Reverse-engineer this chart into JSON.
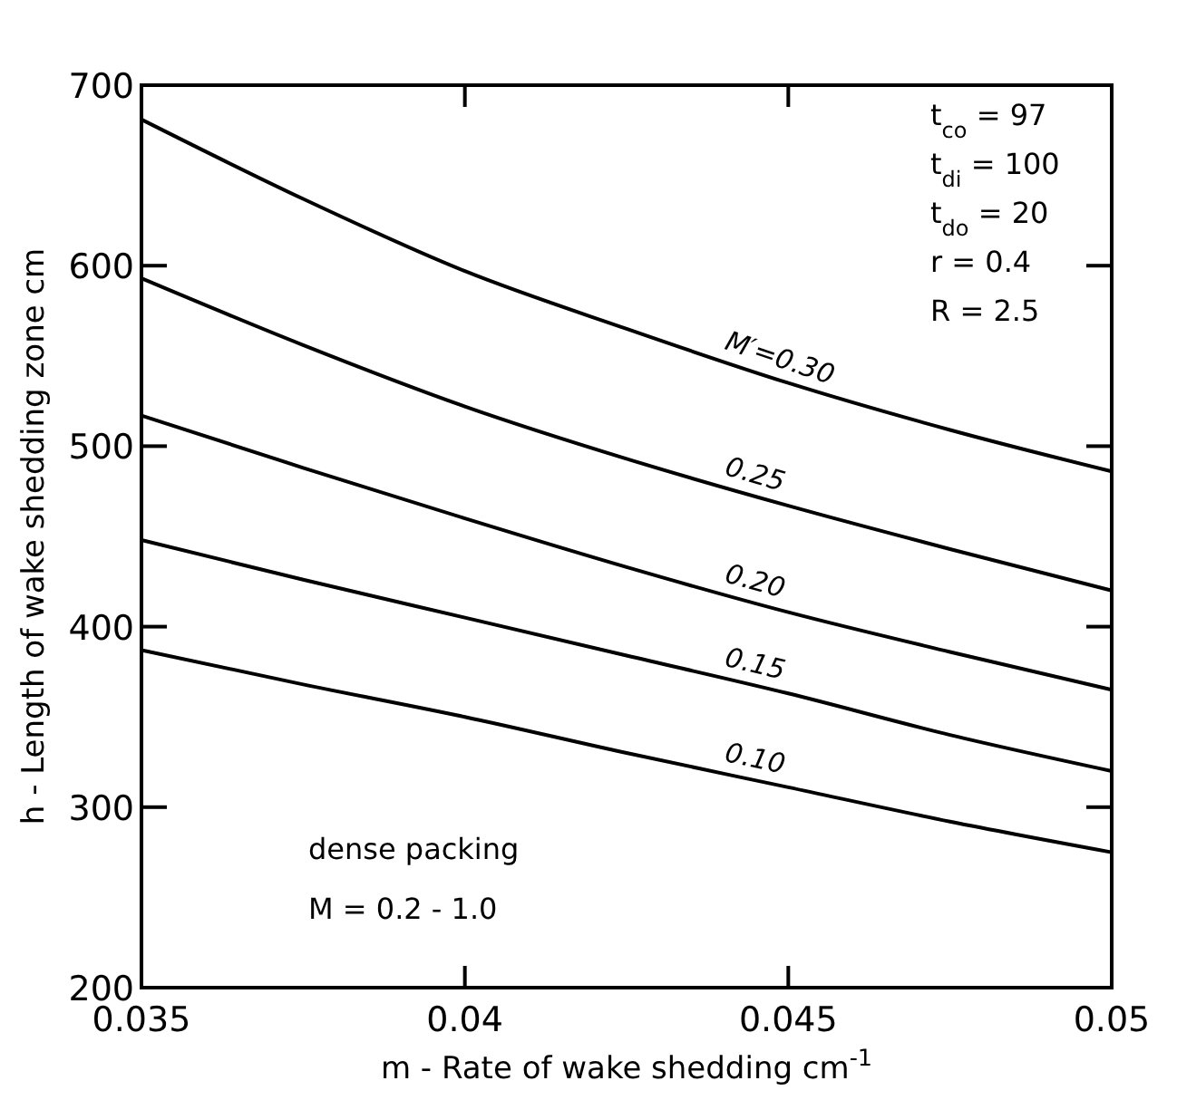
{
  "chart_data": {
    "type": "line",
    "xlabel": "m - Rate of wake shedding cm$^{-1}$",
    "ylabel": "h - Length of wake shedding zone cm",
    "x": [
      0.035,
      0.0375,
      0.04,
      0.0425,
      0.045,
      0.0475,
      0.05
    ],
    "series": [
      {
        "name": "M′=0.30",
        "color": "#000000",
        "values": [
          681,
          637,
          597,
          565,
          535,
          509,
          486
        ]
      },
      {
        "name": "0.25",
        "color": "#000000",
        "values": [
          593,
          556,
          522,
          493,
          467,
          443,
          420
        ]
      },
      {
        "name": "0.20",
        "color": "#000000",
        "values": [
          517,
          488,
          460,
          433,
          408,
          386,
          365
        ]
      },
      {
        "name": "0.15",
        "color": "#000000",
        "values": [
          448,
          426,
          405,
          384,
          363,
          340,
          320
        ]
      },
      {
        "name": "0.10",
        "color": "#000000",
        "values": [
          387,
          368,
          350,
          330,
          311,
          292,
          275
        ]
      }
    ],
    "xlim": [
      0.035,
      0.05
    ],
    "xticks": [
      0.035,
      0.04,
      0.045,
      0.05
    ],
    "ylim": [
      200,
      700
    ],
    "yticks": [
      200,
      300,
      400,
      500,
      600,
      700
    ],
    "grid": false,
    "marker": "none",
    "line_style": "solid",
    "annotations": [
      "t$_{co}$ = 97",
      "t$_{di}$ = 100",
      "t$_{do}$ = 20",
      "r = 0.4",
      "R = 2.5",
      "dense packing",
      "M = 0.2 - 1.0"
    ]
  }
}
